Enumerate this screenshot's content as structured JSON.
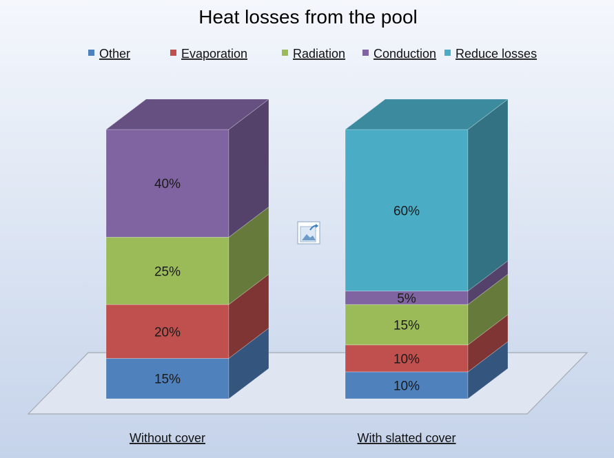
{
  "chart_data": {
    "type": "bar",
    "stacked": true,
    "three_d": true,
    "title": "Heat losses from the pool",
    "categories": [
      "Without cover",
      "With slatted cover"
    ],
    "series": [
      {
        "name": "Other",
        "values": [
          15,
          10
        ],
        "color": "#4f81bd"
      },
      {
        "name": "Evaporation",
        "values": [
          20,
          10
        ],
        "color": "#c0504d"
      },
      {
        "name": "Radiation",
        "values": [
          25,
          15
        ],
        "color": "#9bbb59"
      },
      {
        "name": "Conduction",
        "values": [
          40,
          5
        ],
        "color": "#8064a2"
      },
      {
        "name": "Reduce losses",
        "values": [
          0,
          60
        ],
        "color": "#4bacc6"
      }
    ],
    "data_labels": [
      [
        "15%",
        "20%",
        "25%",
        "40%",
        ""
      ],
      [
        "10%",
        "10%",
        "15%",
        "5%",
        "60%"
      ]
    ],
    "ylim": [
      0,
      100
    ],
    "legend_position": "top",
    "grid": false,
    "background": {
      "top": "#f4f7fc",
      "bottom": "#c5d3ea"
    },
    "floor_color": "#dfe6f1",
    "image_placeholder_icon": "picture-icon"
  }
}
